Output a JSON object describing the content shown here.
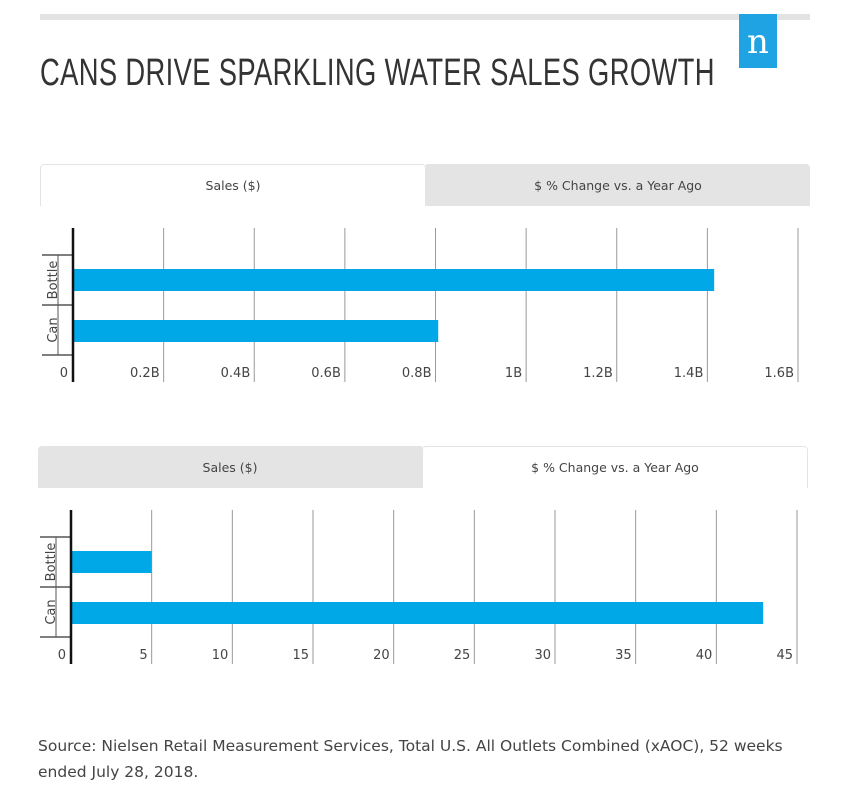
{
  "header": {
    "title": "CANS DRIVE SPARKLING WATER SALES GROWTH",
    "logo_letter": "n"
  },
  "colors": {
    "bar": "#00a8e8",
    "logo": "#1fa3e3"
  },
  "tabs": [
    "Sales ($)",
    "$ % Change vs. a Year Ago"
  ],
  "chart_data": [
    {
      "type": "bar",
      "orientation": "horizontal",
      "title": "Sales ($)",
      "categories": [
        "Bottle",
        "Can"
      ],
      "values": [
        1415000000,
        806000000
      ],
      "ticks": [
        "0",
        "0.2B",
        "0.4B",
        "0.6B",
        "0.8B",
        "1B",
        "1.2B",
        "1.4B",
        "1.6B"
      ],
      "xlim": [
        0,
        1600000000
      ],
      "grid": true
    },
    {
      "type": "bar",
      "orientation": "horizontal",
      "title": "$ % Change vs. a Year Ago",
      "categories": [
        "Bottle",
        "Can"
      ],
      "values": [
        5.0,
        42.9
      ],
      "ticks": [
        "0",
        "5",
        "10",
        "15",
        "20",
        "25",
        "30",
        "35",
        "40",
        "45"
      ],
      "xlim": [
        0,
        45
      ],
      "grid": true
    }
  ],
  "source": "Source: Nielsen Retail Measurement Services, Total U.S. All Outlets Combined (xAOC), 52 weeks ended July 28, 2018."
}
